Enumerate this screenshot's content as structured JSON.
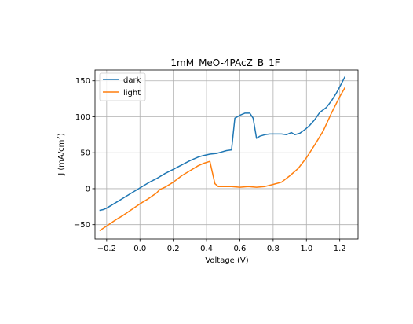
{
  "chart_data": {
    "type": "line",
    "title": "1mM_MeO-4PAcZ_B_1F",
    "xlabel": "Voltage (V)",
    "ylabel_main": "J (mA/cm",
    "ylabel_sup": "2",
    "ylabel_close": ")",
    "xlim": [
      -0.27,
      1.31
    ],
    "ylim": [
      -70,
      165
    ],
    "xticks": [
      -0.2,
      0.0,
      0.2,
      0.4,
      0.6,
      0.8,
      1.0,
      1.2
    ],
    "xtick_labels": [
      "−0.2",
      "0.0",
      "0.2",
      "0.4",
      "0.6",
      "0.8",
      "1.0",
      "1.2"
    ],
    "yticks": [
      -50,
      0,
      50,
      100,
      150
    ],
    "ytick_labels": [
      "−50",
      "0",
      "50",
      "100",
      "150"
    ],
    "grid": true,
    "legend_position": "upper-left",
    "series": [
      {
        "name": "dark",
        "color": "#1f77b4",
        "x": [
          -0.24,
          -0.22,
          -0.2,
          -0.15,
          -0.1,
          -0.05,
          0.0,
          0.05,
          0.1,
          0.15,
          0.2,
          0.25,
          0.3,
          0.35,
          0.38,
          0.42,
          0.46,
          0.49,
          0.52,
          0.55,
          0.57,
          0.6,
          0.63,
          0.66,
          0.68,
          0.7,
          0.72,
          0.75,
          0.78,
          0.82,
          0.85,
          0.88,
          0.91,
          0.93,
          0.96,
          0.99,
          1.02,
          1.05,
          1.08,
          1.12,
          1.15,
          1.18,
          1.21,
          1.23
        ],
        "y": [
          -30,
          -29,
          -27,
          -20,
          -13,
          -6,
          1,
          8,
          14,
          21,
          27,
          33,
          39,
          44,
          46,
          48,
          49,
          51,
          53,
          54,
          98,
          102,
          105,
          105,
          98,
          70,
          73,
          75,
          76,
          76,
          76,
          75,
          78,
          75,
          77,
          82,
          88,
          96,
          106,
          113,
          122,
          133,
          146,
          155
        ]
      },
      {
        "name": "light",
        "color": "#ff7f0e",
        "x": [
          -0.24,
          -0.2,
          -0.15,
          -0.1,
          -0.05,
          0.0,
          0.05,
          0.1,
          0.12,
          0.15,
          0.2,
          0.25,
          0.3,
          0.35,
          0.38,
          0.42,
          0.45,
          0.47,
          0.5,
          0.55,
          0.6,
          0.65,
          0.7,
          0.75,
          0.8,
          0.85,
          0.9,
          0.95,
          1.0,
          1.05,
          1.1,
          1.15,
          1.2,
          1.23
        ],
        "y": [
          -58,
          -52,
          -44,
          -37,
          -29,
          -21,
          -14,
          -6,
          -1,
          2,
          9,
          18,
          25,
          32,
          35,
          38,
          7,
          3,
          3,
          3,
          2,
          3,
          2,
          3,
          6,
          9,
          18,
          28,
          43,
          61,
          80,
          105,
          128,
          140
        ]
      }
    ]
  }
}
